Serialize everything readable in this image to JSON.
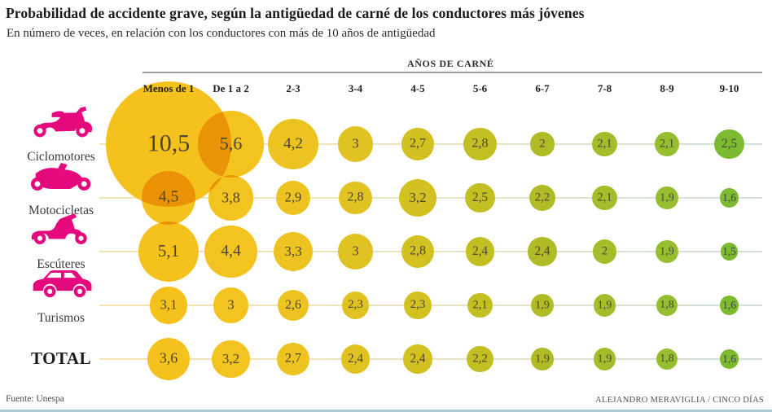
{
  "header": {
    "title": "Probabilidad de accidente grave, según la antigüedad de carné de los conductores más jóvenes",
    "subtitle": "En número de veces, en relación con los conductores con más de 10 años de antigüedad"
  },
  "chart_data": {
    "type": "bubble-matrix",
    "column_group_label": "AÑOS DE CARNÉ",
    "categories": [
      "Menos de 1",
      "De 1 a 2",
      "2-3",
      "3-4",
      "4-5",
      "5-6",
      "6-7",
      "7-8",
      "8-9",
      "9-10"
    ],
    "rows": [
      {
        "label": "Ciclomotores",
        "icon": "moped-icon",
        "values": [
          10.5,
          5.6,
          4.2,
          3,
          2.7,
          2.8,
          2,
          2.1,
          2.1,
          2.5
        ]
      },
      {
        "label": "Motocicletas",
        "icon": "motorcycle-icon",
        "values": [
          4.5,
          3.8,
          2.9,
          2.8,
          3.2,
          2.5,
          2.2,
          2.1,
          1.9,
          1.6
        ]
      },
      {
        "label": "Escúteres",
        "icon": "scooter-icon",
        "values": [
          5.1,
          4.4,
          3.3,
          3,
          2.8,
          2.4,
          2.4,
          2,
          1.9,
          1.5
        ]
      },
      {
        "label": "Turismos",
        "icon": "car-icon",
        "values": [
          3.1,
          3,
          2.6,
          2.3,
          2.3,
          2.1,
          1.9,
          1.9,
          1.8,
          1.6
        ]
      },
      {
        "label": "TOTAL",
        "icon": null,
        "values": [
          3.6,
          3.2,
          2.7,
          2.4,
          2.4,
          2.2,
          1.9,
          1.9,
          1.8,
          1.6
        ]
      }
    ],
    "decimal_separator": ",",
    "column_colors": [
      "#f5c11d",
      "#f3c320",
      "#ecc321",
      "#e0c322",
      "#d3c122",
      "#c2bf23",
      "#b0bc26",
      "#a4bd2a",
      "#97be2e",
      "#7cba31"
    ],
    "icon_color": "#e5097e",
    "value_text_color": "#4c4634",
    "row_line_gradient": [
      "#f3e3ae",
      "#e7e4c4",
      "#d2e2da"
    ]
  },
  "footer": {
    "source": "Fuente: Unespa",
    "credit": "ALEJANDRO MERAVIGLIA / CINCO DÍAS"
  }
}
